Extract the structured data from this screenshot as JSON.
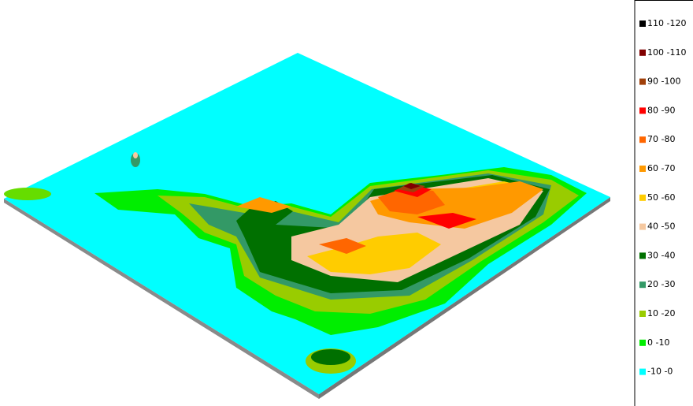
{
  "legend": {
    "items": [
      {
        "label": "110 -120",
        "color": "#000000"
      },
      {
        "label": "100 -110",
        "color": "#800000"
      },
      {
        "label": "90 -100",
        "color": "#a0400a"
      },
      {
        "label": "80 -90",
        "color": "#ff0000"
      },
      {
        "label": "70 -80",
        "color": "#ff6600"
      },
      {
        "label": "60 -70",
        "color": "#ff9900"
      },
      {
        "label": "50 -60",
        "color": "#ffcc00"
      },
      {
        "label": "40 -50",
        "color": "#f5c8a0"
      },
      {
        "label": "30 -40",
        "color": "#007000"
      },
      {
        "label": "20 -30",
        "color": "#339966"
      },
      {
        "label": "10 -20",
        "color": "#99cc00"
      },
      {
        "label": "0 -10",
        "color": "#00ee00"
      },
      {
        "label": "-10 -0",
        "color": "#00ffff"
      }
    ]
  }
}
